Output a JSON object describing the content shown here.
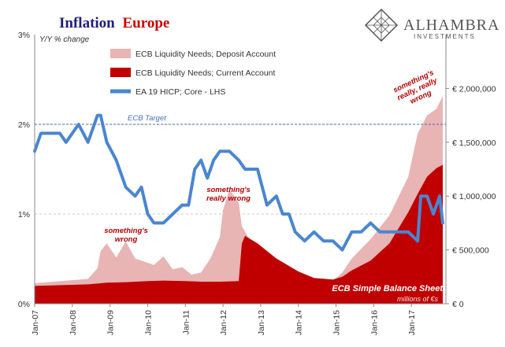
{
  "header": {
    "title_part1": "Inflation",
    "title_part2": "Europe",
    "title_color1": "#1f1f7a",
    "title_color2": "#cc0000"
  },
  "logo": {
    "name": "ALHAMBRA",
    "sub": "INVESTMENTS",
    "icon": "diamond-lattice-icon"
  },
  "chart_data": {
    "type": "area",
    "left_axis_unit": "Y/Y % change",
    "left_ticks": [
      "0%",
      "1%",
      "2%",
      "3%"
    ],
    "left_ylim": [
      0,
      3
    ],
    "right_ticks": [
      "€ 0",
      "€ 500,000",
      "€ 1,000,000",
      "€ 1,500,000",
      "€ 2,000,000"
    ],
    "right_ylim": [
      0,
      2500000
    ],
    "x_ticks": [
      "Jan-07",
      "Jan-08",
      "Jan-09",
      "Jan-10",
      "Jan-11",
      "Jan-12",
      "Jan-13",
      "Jan-14",
      "Jan-15",
      "Jan-16",
      "Jan-17"
    ],
    "target_value": 2.0,
    "target_label": "ECB Target",
    "balance_sheet_label": "ECB Simple Balance Sheet",
    "balance_sheet_unit": "millions of €s",
    "colors": {
      "deposit": "#e8b4b4",
      "current": "#c00000",
      "hicp": "#4a86d0",
      "target": "#4a6fb5"
    },
    "annotations": [
      {
        "text": [
          "something's",
          "wrong"
        ],
        "x": "2008-11"
      },
      {
        "text": [
          "something's",
          "really wrong"
        ],
        "x": "2012-05"
      },
      {
        "text": [
          "something's",
          "really, really",
          "wrong"
        ],
        "x": "2017-03"
      }
    ],
    "series": [
      {
        "name": "ECB Liquidity Needs; Deposit Account",
        "kind": "area",
        "axis": "right",
        "points": [
          [
            "2007-01",
            190000
          ],
          [
            "2008-06",
            230000
          ],
          [
            "2008-09",
            330000
          ],
          [
            "2008-10",
            490000
          ],
          [
            "2008-12",
            560000
          ],
          [
            "2009-03",
            430000
          ],
          [
            "2009-06",
            580000
          ],
          [
            "2009-09",
            420000
          ],
          [
            "2009-12",
            390000
          ],
          [
            "2010-03",
            360000
          ],
          [
            "2010-06",
            440000
          ],
          [
            "2010-09",
            320000
          ],
          [
            "2010-12",
            340000
          ],
          [
            "2011-03",
            270000
          ],
          [
            "2011-06",
            290000
          ],
          [
            "2011-09",
            420000
          ],
          [
            "2011-12",
            620000
          ],
          [
            "2012-01",
            870000
          ],
          [
            "2012-03",
            1060000
          ],
          [
            "2012-06",
            940000
          ],
          [
            "2012-07",
            720000
          ],
          [
            "2012-09",
            620000
          ],
          [
            "2013-01",
            470000
          ],
          [
            "2013-06",
            330000
          ],
          [
            "2014-01",
            260000
          ],
          [
            "2014-06",
            190000
          ],
          [
            "2014-12",
            210000
          ],
          [
            "2015-03",
            290000
          ],
          [
            "2015-06",
            420000
          ],
          [
            "2015-12",
            600000
          ],
          [
            "2016-06",
            820000
          ],
          [
            "2016-12",
            1180000
          ],
          [
            "2017-03",
            1580000
          ],
          [
            "2017-06",
            1750000
          ],
          [
            "2017-09",
            1810000
          ],
          [
            "2017-11",
            1930000
          ]
        ]
      },
      {
        "name": "ECB Liquidity Needs; Current Account",
        "kind": "area",
        "axis": "right",
        "points": [
          [
            "2007-01",
            165000
          ],
          [
            "2008-06",
            180000
          ],
          [
            "2008-12",
            195000
          ],
          [
            "2009-06",
            200000
          ],
          [
            "2010-01",
            210000
          ],
          [
            "2010-06",
            215000
          ],
          [
            "2011-01",
            210000
          ],
          [
            "2011-06",
            205000
          ],
          [
            "2011-12",
            205000
          ],
          [
            "2012-06",
            210000
          ],
          [
            "2012-07",
            560000
          ],
          [
            "2012-08",
            630000
          ],
          [
            "2012-12",
            560000
          ],
          [
            "2013-06",
            420000
          ],
          [
            "2014-01",
            300000
          ],
          [
            "2014-06",
            240000
          ],
          [
            "2014-12",
            225000
          ],
          [
            "2015-03",
            250000
          ],
          [
            "2015-06",
            310000
          ],
          [
            "2015-12",
            400000
          ],
          [
            "2016-06",
            560000
          ],
          [
            "2016-12",
            850000
          ],
          [
            "2017-03",
            1020000
          ],
          [
            "2017-06",
            1180000
          ],
          [
            "2017-09",
            1260000
          ],
          [
            "2017-11",
            1290000
          ]
        ]
      },
      {
        "name": "EA 19 HICP; Core - LHS",
        "kind": "line",
        "axis": "left",
        "points": [
          [
            "2007-01",
            1.7
          ],
          [
            "2007-03",
            1.9
          ],
          [
            "2007-09",
            1.9
          ],
          [
            "2007-11",
            1.8
          ],
          [
            "2008-01",
            1.9
          ],
          [
            "2008-03",
            2.0
          ],
          [
            "2008-06",
            1.8
          ],
          [
            "2008-09",
            2.1
          ],
          [
            "2008-10",
            2.1
          ],
          [
            "2008-12",
            1.8
          ],
          [
            "2009-03",
            1.6
          ],
          [
            "2009-06",
            1.3
          ],
          [
            "2009-09",
            1.2
          ],
          [
            "2009-11",
            1.3
          ],
          [
            "2010-01",
            1.0
          ],
          [
            "2010-03",
            0.9
          ],
          [
            "2010-06",
            0.9
          ],
          [
            "2010-09",
            1.0
          ],
          [
            "2010-12",
            1.1
          ],
          [
            "2011-02",
            1.1
          ],
          [
            "2011-04",
            1.5
          ],
          [
            "2011-06",
            1.6
          ],
          [
            "2011-08",
            1.4
          ],
          [
            "2011-10",
            1.6
          ],
          [
            "2011-12",
            1.7
          ],
          [
            "2012-03",
            1.7
          ],
          [
            "2012-06",
            1.6
          ],
          [
            "2012-08",
            1.5
          ],
          [
            "2012-10",
            1.5
          ],
          [
            "2012-12",
            1.5
          ],
          [
            "2013-03",
            1.1
          ],
          [
            "2013-06",
            1.2
          ],
          [
            "2013-08",
            1.0
          ],
          [
            "2013-10",
            1.0
          ],
          [
            "2013-12",
            0.8
          ],
          [
            "2014-03",
            0.7
          ],
          [
            "2014-06",
            0.8
          ],
          [
            "2014-09",
            0.7
          ],
          [
            "2014-12",
            0.7
          ],
          [
            "2015-03",
            0.6
          ],
          [
            "2015-06",
            0.8
          ],
          [
            "2015-09",
            0.8
          ],
          [
            "2015-12",
            0.9
          ],
          [
            "2016-03",
            0.8
          ],
          [
            "2016-06",
            0.8
          ],
          [
            "2016-09",
            0.8
          ],
          [
            "2016-12",
            0.8
          ],
          [
            "2017-03",
            0.7
          ],
          [
            "2017-04",
            1.2
          ],
          [
            "2017-06",
            1.2
          ],
          [
            "2017-08",
            1.0
          ],
          [
            "2017-10",
            1.2
          ],
          [
            "2017-11",
            0.9
          ]
        ]
      }
    ]
  }
}
